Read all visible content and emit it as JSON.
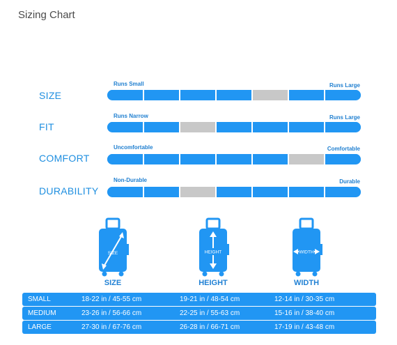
{
  "title": "Sizing Chart",
  "ratings": [
    {
      "label": "SIZE",
      "left": "Runs Small",
      "right": "Runs Large",
      "selected_segment": 5,
      "segments": 7
    },
    {
      "label": "FIT",
      "left": "Runs Narrow",
      "right": "Runs Large",
      "selected_segment": 3,
      "segments": 7
    },
    {
      "label": "COMFORT",
      "left": "Uncomfortable",
      "right": "Comfortable",
      "selected_segment": 6,
      "segments": 7
    },
    {
      "label": "DURABILITY",
      "left": "Non-Durable",
      "right": "Durable",
      "selected_segment": 3,
      "segments": 7
    }
  ],
  "bags": [
    {
      "caption": "SIZE",
      "inner_label": "SIZE"
    },
    {
      "caption": "HEIGHT",
      "inner_label": "HEIGHT"
    },
    {
      "caption": "WIDTH",
      "inner_label": "WIDTH"
    }
  ],
  "sizes": [
    {
      "name": "SMALL",
      "size": "18-22 in / 45-55 cm",
      "height": "19-21 in / 48-54 cm",
      "width": "12-14 in / 30-35 cm"
    },
    {
      "name": "MEDIUM",
      "size": "23-26 in / 56-66 cm",
      "height": "22-25 in / 55-63 cm",
      "width": "15-16 in / 38-40 cm"
    },
    {
      "name": "LARGE",
      "size": "27-30 in / 67-76 cm",
      "height": "26-28 in / 66-71 cm",
      "width": "17-19 in / 43-48 cm"
    }
  ],
  "colors": {
    "accent": "#2196f3",
    "selected": "#c8c8c8",
    "label": "#1f8fe0"
  }
}
